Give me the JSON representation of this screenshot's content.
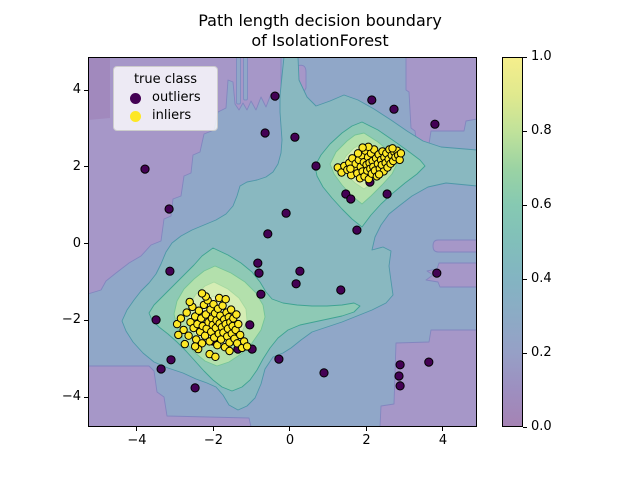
{
  "title": {
    "line1": "Path length decision boundary",
    "line2": "of IsolationForest"
  },
  "legend": {
    "title": "true class",
    "items": [
      {
        "label": "outliers",
        "color": "#440154"
      },
      {
        "label": "inliers",
        "color": "#fde725"
      }
    ]
  },
  "axes": {
    "x_tick_labels": [
      "−4",
      "−2",
      "0",
      "2",
      "4"
    ],
    "y_tick_labels": [
      "4",
      "2",
      "0",
      "−2",
      "−4"
    ]
  },
  "colorbar": {
    "tick_labels": [
      "0.0",
      "0.2",
      "0.4",
      "0.6",
      "0.8",
      "1.0"
    ],
    "gradient": [
      "#a583b4",
      "#9d8fc0",
      "#96a0c6",
      "#8cabc5",
      "#83b4c2",
      "#81bfba",
      "#86c9b2",
      "#9bd3a3",
      "#c0e29a",
      "#e0e98e",
      "#f5ee8c"
    ]
  },
  "chart_data": {
    "type": "scatter",
    "title": "Path length decision boundary\nof IsolationForest",
    "xlim": [
      -5.28,
      4.89
    ],
    "ylim": [
      -4.78,
      4.86
    ],
    "x_ticks": [
      -4,
      -2,
      0,
      2,
      4
    ],
    "y_ticks": [
      4,
      2,
      0,
      -2,
      -4
    ],
    "colorbar_range": [
      0,
      1
    ],
    "colormap": "viridis (alpha-blended)",
    "background": "filled contours of IsolationForest path-length decision function, normalized 0-1",
    "series": [
      {
        "name": "outliers",
        "color": "#440154",
        "marker_radius_px": 4.1,
        "points": [
          [
            -0.39,
            3.84
          ],
          [
            -0.65,
            2.88
          ],
          [
            -3.79,
            1.94
          ],
          [
            -3.16,
            0.9
          ],
          [
            -0.58,
            0.25
          ],
          [
            2.14,
            3.74
          ],
          [
            2.72,
            3.5
          ],
          [
            3.79,
            3.11
          ],
          [
            0.13,
            2.77
          ],
          [
            0.68,
            2.02
          ],
          [
            1.46,
            1.29
          ],
          [
            1.59,
            1.16
          ],
          [
            2.54,
            1.29
          ],
          [
            -0.1,
            0.79
          ],
          [
            1.75,
            0.35
          ],
          [
            2.09,
            1.6
          ],
          [
            0.26,
            -0.72
          ],
          [
            0.16,
            -1.05
          ],
          [
            1.33,
            -1.21
          ],
          [
            3.84,
            -0.77
          ],
          [
            2.88,
            -3.16
          ],
          [
            3.63,
            -3.09
          ],
          [
            2.85,
            -3.45
          ],
          [
            2.88,
            -3.71
          ],
          [
            0.89,
            -3.37
          ],
          [
            -3.14,
            -0.72
          ],
          [
            -0.84,
            -0.51
          ],
          [
            -0.81,
            -0.77
          ],
          [
            -0.76,
            -1.32
          ],
          [
            -3.5,
            -1.99
          ],
          [
            -1.05,
            -2.12
          ],
          [
            -2.01,
            -2.54
          ],
          [
            -1.36,
            -2.75
          ],
          [
            -0.99,
            -2.75
          ],
          [
            -0.29,
            -3.01
          ],
          [
            -3.11,
            -3.03
          ],
          [
            -3.37,
            -3.27
          ],
          [
            -2.48,
            -3.76
          ]
        ]
      },
      {
        "name": "inliers (upper-right cluster)",
        "color": "#fde725",
        "marker_radius_px": 3.7,
        "points": [
          [
            1.25,
            1.98
          ],
          [
            1.35,
            1.85
          ],
          [
            1.42,
            2.02
          ],
          [
            1.5,
            1.92
          ],
          [
            1.55,
            2.1
          ],
          [
            1.6,
            1.78
          ],
          [
            1.63,
            2.22
          ],
          [
            1.68,
            1.95
          ],
          [
            1.72,
            2.08
          ],
          [
            1.76,
            1.83
          ],
          [
            1.8,
            2.18
          ],
          [
            1.83,
            1.7
          ],
          [
            1.85,
            2.0
          ],
          [
            1.88,
            2.3
          ],
          [
            1.9,
            1.88
          ],
          [
            1.93,
            2.12
          ],
          [
            1.95,
            1.75
          ],
          [
            1.97,
            2.42
          ],
          [
            2.0,
            2.05
          ],
          [
            2.02,
            1.9
          ],
          [
            2.04,
            2.25
          ],
          [
            2.06,
            1.68
          ],
          [
            2.08,
            2.1
          ],
          [
            2.1,
            1.95
          ],
          [
            2.12,
            2.35
          ],
          [
            2.14,
            1.82
          ],
          [
            2.16,
            2.15
          ],
          [
            2.18,
            2.0
          ],
          [
            2.2,
            2.45
          ],
          [
            2.22,
            1.9
          ],
          [
            2.25,
            2.22
          ],
          [
            2.27,
            1.75
          ],
          [
            2.3,
            2.08
          ],
          [
            2.32,
            2.32
          ],
          [
            2.35,
            1.95
          ],
          [
            2.38,
            2.18
          ],
          [
            2.4,
            2.05
          ],
          [
            2.42,
            2.4
          ],
          [
            2.45,
            1.88
          ],
          [
            2.47,
            2.25
          ],
          [
            2.5,
            2.1
          ],
          [
            2.52,
            2.35
          ],
          [
            2.55,
            1.98
          ],
          [
            2.58,
            2.2
          ],
          [
            2.6,
            2.45
          ],
          [
            2.63,
            2.08
          ],
          [
            2.66,
            2.3
          ],
          [
            2.7,
            2.15
          ],
          [
            2.73,
            2.38
          ],
          [
            2.76,
            2.25
          ],
          [
            2.8,
            2.42
          ],
          [
            2.83,
            2.3
          ],
          [
            2.87,
            2.18
          ],
          [
            2.9,
            2.35
          ],
          [
            1.58,
            1.95
          ],
          [
            1.78,
            2.35
          ],
          [
            2.33,
            1.8
          ],
          [
            2.05,
            2.52
          ],
          [
            1.9,
            2.5
          ],
          [
            2.68,
            2.48
          ]
        ]
      },
      {
        "name": "inliers (lower-left cluster)",
        "color": "#fde725",
        "marker_radius_px": 3.7,
        "points": [
          [
            -2.95,
            -2.1
          ],
          [
            -2.85,
            -1.95
          ],
          [
            -2.78,
            -2.25
          ],
          [
            -2.7,
            -1.8
          ],
          [
            -2.65,
            -2.4
          ],
          [
            -2.6,
            -2.05
          ],
          [
            -2.55,
            -1.65
          ],
          [
            -2.52,
            -2.2
          ],
          [
            -2.48,
            -1.9
          ],
          [
            -2.45,
            -2.5
          ],
          [
            -2.42,
            -2.1
          ],
          [
            -2.38,
            -1.75
          ],
          [
            -2.35,
            -2.3
          ],
          [
            -2.32,
            -1.95
          ],
          [
            -2.3,
            -2.6
          ],
          [
            -2.28,
            -2.15
          ],
          [
            -2.25,
            -1.6
          ],
          [
            -2.22,
            -2.4
          ],
          [
            -2.2,
            -1.85
          ],
          [
            -2.18,
            -2.22
          ],
          [
            -2.15,
            -1.48
          ],
          [
            -2.13,
            -2.05
          ],
          [
            -2.1,
            -2.55
          ],
          [
            -2.08,
            -1.72
          ],
          [
            -2.06,
            -2.3
          ],
          [
            -2.04,
            -1.95
          ],
          [
            -2.02,
            -2.12
          ],
          [
            -2.0,
            -1.58
          ],
          [
            -1.98,
            -2.45
          ],
          [
            -1.96,
            -1.82
          ],
          [
            -1.94,
            -2.2
          ],
          [
            -1.92,
            -2.0
          ],
          [
            -1.9,
            -2.65
          ],
          [
            -1.88,
            -1.7
          ],
          [
            -1.86,
            -2.35
          ],
          [
            -1.84,
            -2.08
          ],
          [
            -1.82,
            -1.88
          ],
          [
            -1.8,
            -2.5
          ],
          [
            -1.78,
            -2.18
          ],
          [
            -1.76,
            -1.62
          ],
          [
            -1.74,
            -2.32
          ],
          [
            -1.72,
            -1.98
          ],
          [
            -1.7,
            -2.7
          ],
          [
            -1.68,
            -2.1
          ],
          [
            -1.66,
            -1.8
          ],
          [
            -1.64,
            -2.42
          ],
          [
            -1.62,
            -2.22
          ],
          [
            -1.6,
            -1.92
          ],
          [
            -1.58,
            -2.58
          ],
          [
            -1.56,
            -2.05
          ],
          [
            -1.54,
            -1.72
          ],
          [
            -1.52,
            -2.35
          ],
          [
            -1.5,
            -2.15
          ],
          [
            -1.48,
            -1.95
          ],
          [
            -1.45,
            -2.48
          ],
          [
            -1.42,
            -2.25
          ],
          [
            -1.4,
            -1.85
          ],
          [
            -1.38,
            -2.6
          ],
          [
            -1.35,
            -2.1
          ],
          [
            -1.3,
            -2.38
          ],
          [
            -1.25,
            -2.72
          ],
          [
            -1.2,
            -2.55
          ],
          [
            -1.12,
            -2.68
          ],
          [
            -2.4,
            -2.75
          ],
          [
            -2.1,
            -2.88
          ],
          [
            -1.95,
            -2.95
          ],
          [
            -2.62,
            -1.52
          ],
          [
            -2.2,
            -1.38
          ],
          [
            -1.85,
            -1.42
          ],
          [
            -2.75,
            -2.62
          ],
          [
            -2.92,
            -2.38
          ],
          [
            -1.68,
            -1.45
          ],
          [
            -2.48,
            -2.68
          ],
          [
            -1.58,
            -2.8
          ],
          [
            -2.3,
            -1.3
          ]
        ]
      }
    ],
    "contour_bands": [
      {
        "name": "level-low purple",
        "fill": "#a697c8",
        "stroke": "#8286bf"
      },
      {
        "name": "level-lowest purple",
        "fill": "#a189bd",
        "stroke": "#a189bd"
      },
      {
        "name": "base blue",
        "fill": "#90a7c8",
        "stroke": "#7d8cc0"
      },
      {
        "name": "steel teal",
        "fill": "#89b8c0",
        "stroke": "#4e97a8"
      },
      {
        "name": "teal green",
        "fill": "#8ec9b5",
        "stroke": "#3fa392"
      },
      {
        "name": "light green",
        "fill": "#b3e0ac",
        "stroke": "#74c498"
      },
      {
        "name": "pale core",
        "fill": "#d5edb4",
        "stroke": "#a5d9a0"
      },
      {
        "name": "palest core",
        "fill": "#e6f3c3",
        "stroke": "#bfe3ad"
      }
    ]
  }
}
